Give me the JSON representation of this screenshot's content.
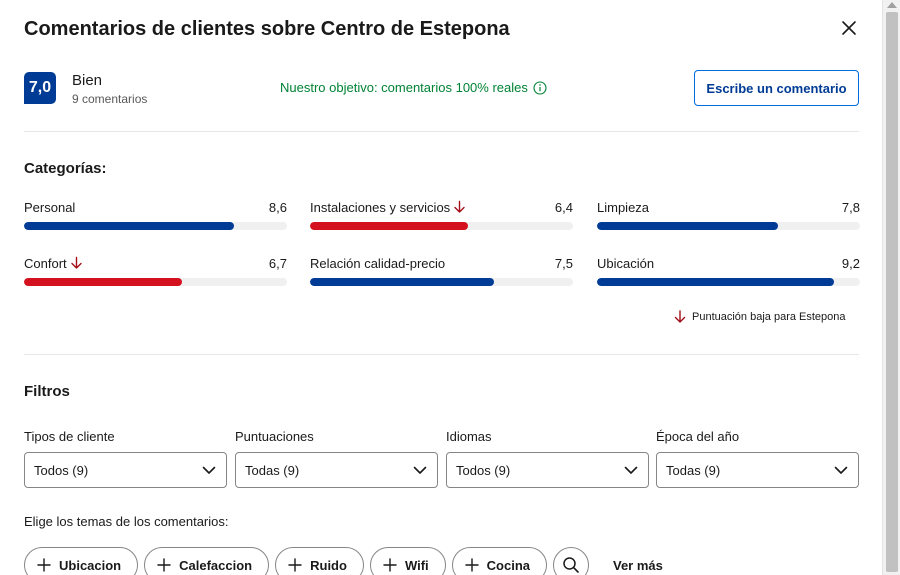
{
  "header": {
    "title": "Comentarios de clientes sobre Centro de Estepona"
  },
  "summary": {
    "score": "7,0",
    "rating_word": "Bien",
    "review_count": "9 comentarios",
    "goal_text": "Nuestro objetivo: comentarios 100% reales",
    "write_button": "Escribe un comentario"
  },
  "categories": {
    "title": "Categorías:",
    "items": [
      {
        "label": "Personal",
        "value": "8,6",
        "fraction": 0.8,
        "low": false
      },
      {
        "label": "Instalaciones y servicios",
        "value": "6,4",
        "fraction": 0.6,
        "low": true
      },
      {
        "label": "Limpieza",
        "value": "7,8",
        "fraction": 0.69,
        "low": false
      },
      {
        "label": "Confort",
        "value": "6,7",
        "fraction": 0.6,
        "low": true
      },
      {
        "label": "Relación calidad-precio",
        "value": "7,5",
        "fraction": 0.7,
        "low": false
      },
      {
        "label": "Ubicación",
        "value": "9,2",
        "fraction": 0.9,
        "low": false
      }
    ],
    "low_note": "Puntuación baja para Estepona",
    "colors": {
      "normal": "#003b95",
      "low": "#d4111e"
    }
  },
  "filters": {
    "title": "Filtros",
    "items": [
      {
        "label": "Tipos de cliente",
        "value": "Todos (9)"
      },
      {
        "label": "Puntuaciones",
        "value": "Todas (9)"
      },
      {
        "label": "Idiomas",
        "value": "Todos (9)"
      },
      {
        "label": "Época del año",
        "value": "Todas (9)"
      }
    ]
  },
  "topics": {
    "label": "Elige los temas de los comentarios:",
    "chips": [
      "Ubicacion",
      "Calefaccion",
      "Ruido",
      "Wifi",
      "Cocina"
    ],
    "see_more": "Ver más"
  }
}
